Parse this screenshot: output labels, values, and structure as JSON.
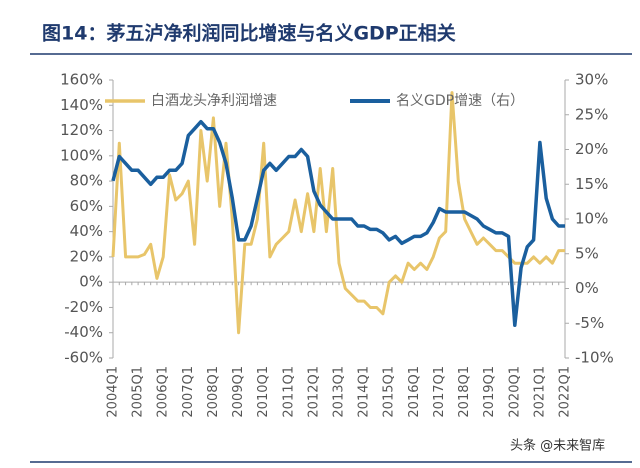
{
  "chart_data": {
    "type": "line",
    "title": "图14：茅五泸净利润同比增速与名义GDP正相关",
    "watermark": "头条 @未来智库",
    "categories": [
      "2004Q1",
      null,
      null,
      null,
      "2005Q1",
      null,
      null,
      null,
      "2006Q1",
      null,
      null,
      null,
      "2007Q1",
      null,
      null,
      null,
      "2008Q1",
      null,
      null,
      null,
      "2009Q1",
      null,
      null,
      null,
      "2010Q1",
      null,
      null,
      null,
      "2011Q1",
      null,
      null,
      null,
      "2012Q1",
      null,
      null,
      null,
      "2013Q1",
      null,
      null,
      null,
      "2014Q1",
      null,
      null,
      null,
      "2015Q1",
      null,
      null,
      null,
      "2016Q1",
      null,
      null,
      null,
      "2017Q1",
      null,
      null,
      null,
      "2018Q1",
      null,
      null,
      null,
      "2019Q1",
      null,
      null,
      null,
      "2020Q1",
      null,
      null,
      null,
      "2021Q1",
      null,
      null,
      null,
      "2022Q1"
    ],
    "series": [
      {
        "name": "白酒龙头净利润增速",
        "color": "#e8c56a",
        "axis": "y",
        "values": [
          20,
          110,
          20,
          20,
          20,
          22,
          30,
          3,
          20,
          85,
          65,
          70,
          80,
          30,
          120,
          80,
          130,
          60,
          110,
          50,
          -40,
          30,
          30,
          50,
          110,
          20,
          30,
          35,
          40,
          65,
          40,
          70,
          40,
          90,
          40,
          90,
          15,
          -5,
          -10,
          -15,
          -15,
          -20,
          -20,
          -25,
          0,
          5,
          0,
          15,
          10,
          15,
          10,
          20,
          35,
          40,
          150,
          80,
          50,
          40,
          30,
          35,
          30,
          25,
          25,
          20,
          15,
          15,
          15,
          20,
          15,
          20,
          15,
          25,
          25
        ]
      },
      {
        "name": "名义GDP增速（右）",
        "color": "#1a5f9e",
        "axis": "y2",
        "values": [
          15.5,
          19,
          18,
          17,
          17,
          16,
          15,
          16,
          16,
          17,
          17,
          18,
          22,
          23,
          24,
          23,
          23,
          21,
          18,
          13,
          7,
          7,
          9,
          13,
          17,
          18,
          17,
          18,
          19,
          19,
          20,
          19,
          14,
          12,
          11,
          10,
          10,
          10,
          10,
          9,
          9,
          8.5,
          8.5,
          8,
          7,
          7.5,
          6.5,
          7,
          7.5,
          7.5,
          8,
          9.5,
          11.5,
          11,
          11,
          11,
          11,
          10.5,
          10,
          9,
          8.5,
          8,
          8,
          7.5,
          -5.3,
          3,
          6,
          7,
          21,
          13,
          10,
          9,
          9
        ]
      }
    ],
    "ylim": [
      -60,
      160
    ],
    "yticks": [
      {
        "value": -60,
        "label": "-60%"
      },
      {
        "value": -40,
        "label": "-40%"
      },
      {
        "value": -20,
        "label": "-20%"
      },
      {
        "value": 0,
        "label": "0%"
      },
      {
        "value": 20,
        "label": "20%"
      },
      {
        "value": 40,
        "label": "40%"
      },
      {
        "value": 60,
        "label": "60%"
      },
      {
        "value": 80,
        "label": "80%"
      },
      {
        "value": 100,
        "label": "100%"
      },
      {
        "value": 120,
        "label": "120%"
      },
      {
        "value": 140,
        "label": "140%"
      },
      {
        "value": 160,
        "label": "160%"
      }
    ],
    "y2lim": [
      -10,
      30
    ],
    "y2ticks": [
      {
        "value": -10,
        "label": "-10%"
      },
      {
        "value": -5,
        "label": "-5%"
      },
      {
        "value": 0,
        "label": "0%"
      },
      {
        "value": 5,
        "label": "5%"
      },
      {
        "value": 10,
        "label": "10%"
      },
      {
        "value": 15,
        "label": "15%"
      },
      {
        "value": 20,
        "label": "20%"
      },
      {
        "value": 25,
        "label": "25%"
      },
      {
        "value": 30,
        "label": "30%"
      }
    ],
    "grid": false,
    "legend": "top"
  }
}
